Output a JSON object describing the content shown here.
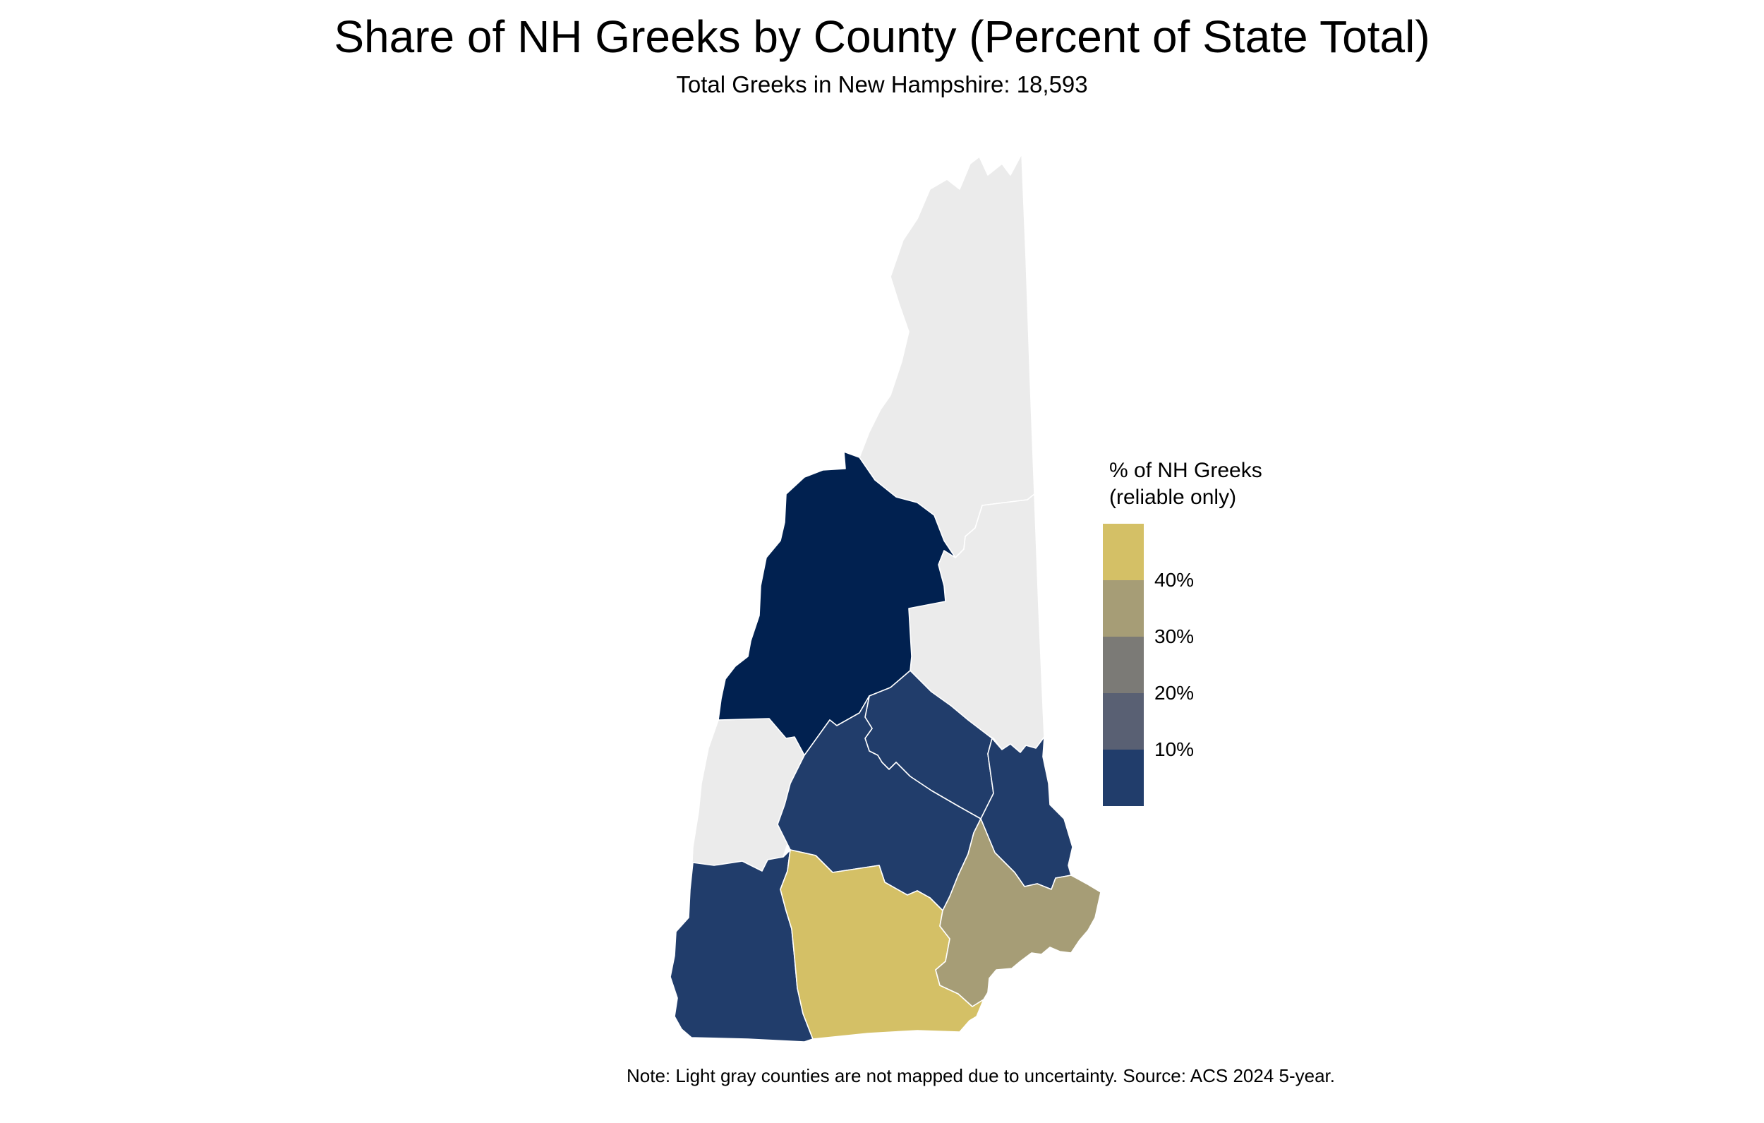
{
  "title": "Share of NH Greeks by County (Percent of State Total)",
  "subtitle": "Total Greeks in New Hampshire: 18,593",
  "caption": "Note: Light gray counties are not mapped due to uncertainty. Source: ACS 2024 5-year.",
  "legend": {
    "title_line1": "% of NH Greeks",
    "title_line2": "(reliable only)",
    "ticks": [
      "40%",
      "30%",
      "20%",
      "10%"
    ],
    "colors": [
      "#d4c066",
      "#a69d76",
      "#7b7a76",
      "#596073",
      "#213d6b"
    ]
  },
  "colors": {
    "unmapped": "#ebebeb",
    "border": "#ffffff"
  },
  "counties": [
    {
      "name": "Coos",
      "status": "unmapped",
      "color": "#ebebeb"
    },
    {
      "name": "Carroll",
      "status": "unmapped",
      "color": "#ebebeb"
    },
    {
      "name": "Sullivan",
      "status": "unmapped",
      "color": "#ebebeb"
    },
    {
      "name": "Grafton",
      "status": "mapped",
      "color": "#012150"
    },
    {
      "name": "Belknap",
      "status": "mapped",
      "color": "#213d6b"
    },
    {
      "name": "Strafford",
      "status": "mapped",
      "color": "#213d6b"
    },
    {
      "name": "Merrimack",
      "status": "mapped",
      "color": "#213d6b"
    },
    {
      "name": "Cheshire",
      "status": "mapped",
      "color": "#213d6b"
    },
    {
      "name": "Hillsborough",
      "status": "mapped",
      "color": "#d4c066"
    },
    {
      "name": "Rockingham",
      "status": "mapped",
      "color": "#a69d76"
    }
  ]
}
